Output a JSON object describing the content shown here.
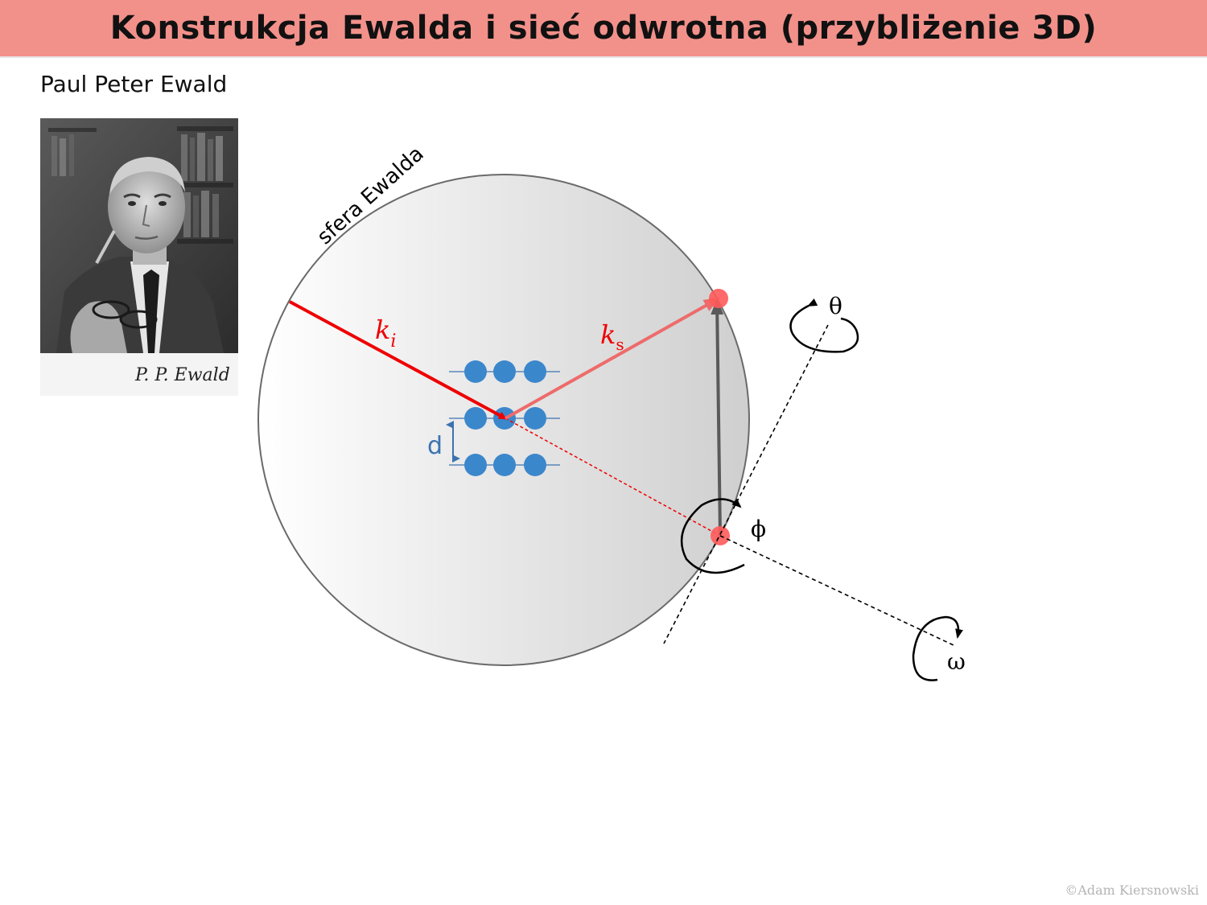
{
  "header": {
    "title": "Konstrukcja Ewalda i sieć odwrotna (przybliżenie 3D)"
  },
  "portrait": {
    "caption": "Paul Peter Ewald",
    "signature": "P. P. Ewald"
  },
  "diagram": {
    "sphere_label": "sfera Ewalda",
    "incident_vector": {
      "symbol": "k",
      "subscript": "i"
    },
    "scattered_vector": {
      "symbol": "k",
      "subscript": "s"
    },
    "spacing_label": "d",
    "rotation_axes": {
      "theta": "θ",
      "phi": "ϕ",
      "omega": "ω"
    }
  },
  "footer": {
    "copyright": "©Adam Kiersnowski"
  },
  "colors": {
    "title_bar": "#f2918a",
    "incident_vector": "#ee0000",
    "scattered_vector": "#ee6b6b",
    "lattice_points": "#3b87cc",
    "reciprocal_points": "#ff5a5a",
    "reciprocal_vector": "#606060"
  }
}
